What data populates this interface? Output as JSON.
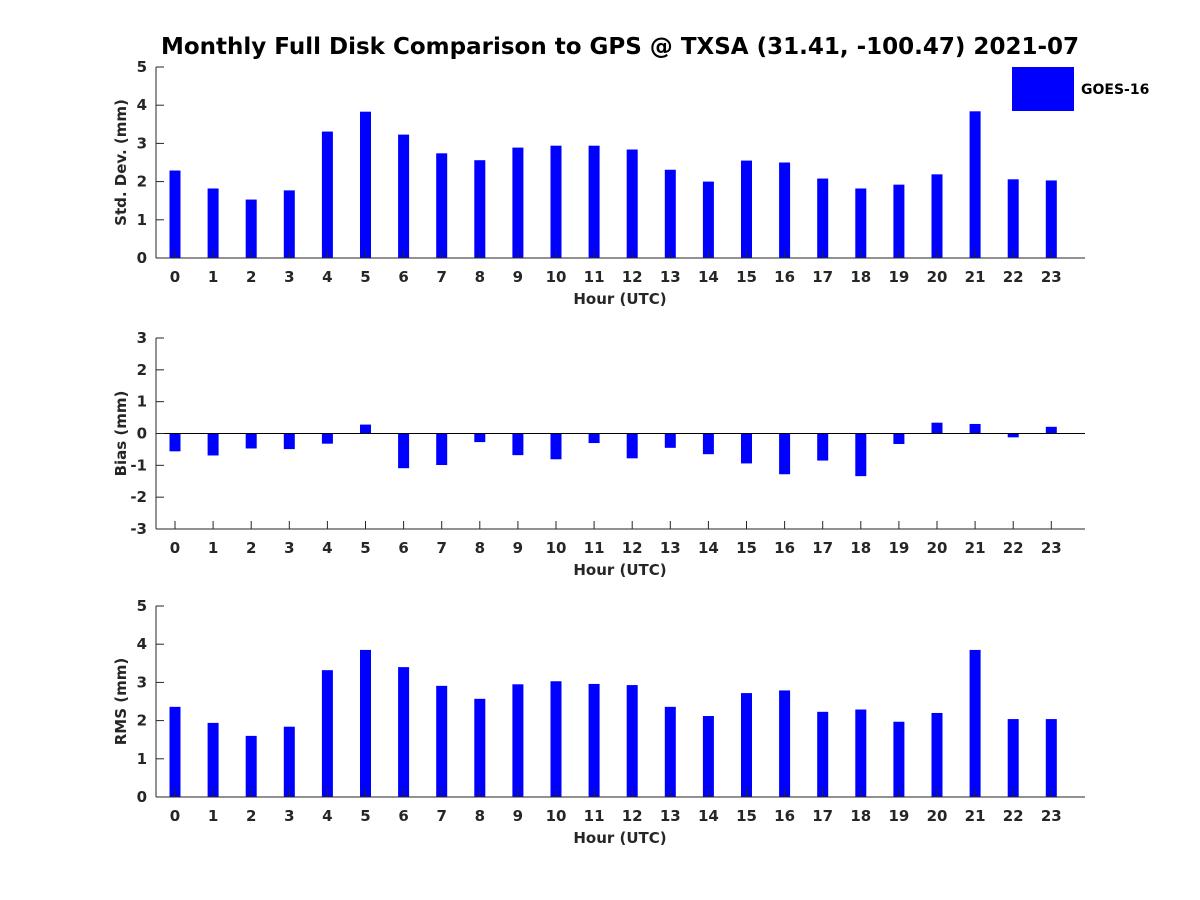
{
  "chart_data": {
    "title": "Monthly Full Disk Comparison to GPS @ TXSA (31.41, -100.47) 2021-07",
    "legend": {
      "label": "GOES-16",
      "color": "#0000ff",
      "placement": "top-right"
    },
    "colors": {
      "bar": "#0000ff",
      "axis": "#262626",
      "title": "#000000"
    },
    "panels": [
      {
        "type": "bar",
        "xlabel": "Hour (UTC)",
        "ylabel": "Std. Dev. (mm)",
        "ylim": [
          0,
          5
        ],
        "yticks": [
          "0",
          "1",
          "2",
          "3",
          "4",
          "5"
        ],
        "categories": [
          "0",
          "1",
          "2",
          "3",
          "4",
          "5",
          "6",
          "7",
          "8",
          "9",
          "10",
          "11",
          "12",
          "13",
          "14",
          "15",
          "16",
          "17",
          "18",
          "19",
          "20",
          "21",
          "22",
          "23"
        ],
        "series": [
          {
            "name": "GOES-16",
            "values": [
              2.29,
              1.82,
              1.53,
              1.77,
              3.31,
              3.83,
              3.23,
              2.74,
              2.56,
              2.89,
              2.94,
              2.94,
              2.84,
              2.31,
              2.0,
              2.55,
              2.5,
              2.08,
              1.82,
              1.92,
              2.19,
              3.84,
              2.06,
              2.03
            ]
          }
        ]
      },
      {
        "type": "bar",
        "xlabel": "Hour (UTC)",
        "ylabel": "Bias (mm)",
        "ylim": [
          -3,
          3
        ],
        "yticks": [
          "-3",
          "-2",
          "-1",
          "0",
          "1",
          "2",
          "3"
        ],
        "categories": [
          "0",
          "1",
          "2",
          "3",
          "4",
          "5",
          "6",
          "7",
          "8",
          "9",
          "10",
          "11",
          "12",
          "13",
          "14",
          "15",
          "16",
          "17",
          "18",
          "19",
          "20",
          "21",
          "22",
          "23"
        ],
        "series": [
          {
            "name": "GOES-16",
            "values": [
              -0.56,
              -0.69,
              -0.47,
              -0.49,
              -0.32,
              0.28,
              -1.09,
              -0.99,
              -0.27,
              -0.68,
              -0.81,
              -0.3,
              -0.78,
              -0.45,
              -0.65,
              -0.94,
              -1.28,
              -0.85,
              -1.34,
              -0.33,
              0.34,
              0.3,
              -0.12,
              0.21
            ]
          }
        ]
      },
      {
        "type": "bar",
        "xlabel": "Hour (UTC)",
        "ylabel": "RMS (mm)",
        "ylim": [
          0,
          5
        ],
        "yticks": [
          "0",
          "1",
          "2",
          "3",
          "4",
          "5"
        ],
        "categories": [
          "0",
          "1",
          "2",
          "3",
          "4",
          "5",
          "6",
          "7",
          "8",
          "9",
          "10",
          "11",
          "12",
          "13",
          "14",
          "15",
          "16",
          "17",
          "18",
          "19",
          "20",
          "21",
          "22",
          "23"
        ],
        "series": [
          {
            "name": "GOES-16",
            "values": [
              2.36,
              1.94,
              1.6,
              1.84,
              3.32,
              3.85,
              3.4,
              2.91,
              2.57,
              2.95,
              3.03,
              2.96,
              2.93,
              2.36,
              2.12,
              2.72,
              2.79,
              2.23,
              2.29,
              1.97,
              2.2,
              3.85,
              2.04,
              2.04
            ]
          }
        ]
      }
    ]
  }
}
